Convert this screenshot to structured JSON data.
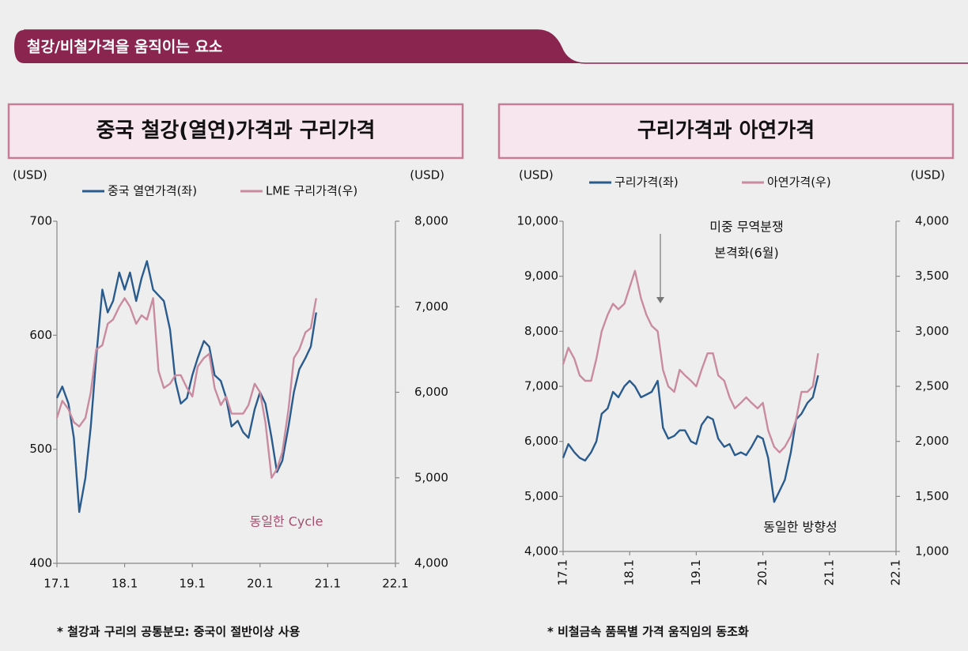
{
  "header": {
    "title": "철강/비철가격을 움직이는 요소"
  },
  "chart_data": [
    {
      "type": "line",
      "title": "중국 철강(열연)가격과 구리가격",
      "ylabel": "(USD)",
      "y2label": "(USD)",
      "x": [
        17,
        17.08,
        17.17,
        17.25,
        17.33,
        17.42,
        17.5,
        17.58,
        17.67,
        17.75,
        17.83,
        17.92,
        18,
        18.08,
        18.17,
        18.25,
        18.33,
        18.42,
        18.5,
        18.58,
        18.67,
        18.75,
        18.83,
        18.92,
        19,
        19.08,
        19.17,
        19.25,
        19.33,
        19.42,
        19.5,
        19.58,
        19.67,
        19.75,
        19.83,
        19.92,
        20,
        20.08,
        20.17,
        20.25,
        20.33,
        20.42,
        20.5,
        20.58,
        20.67,
        20.75,
        20.83
      ],
      "xlim": [
        17,
        22
      ],
      "xticks": [
        {
          "value": 17,
          "label": "17.1"
        },
        {
          "value": 18,
          "label": "18.1"
        },
        {
          "value": 19,
          "label": "19.1"
        },
        {
          "value": 20,
          "label": "20.1"
        },
        {
          "value": 21,
          "label": "21.1"
        },
        {
          "value": 22,
          "label": "22.1"
        }
      ],
      "ylim": [
        400,
        700
      ],
      "yticks": [
        400,
        500,
        600,
        700
      ],
      "y2lim": [
        4000,
        8000
      ],
      "y2ticks": [
        {
          "value": 4000,
          "label": "4,000"
        },
        {
          "value": 5000,
          "label": "5,000"
        },
        {
          "value": 6000,
          "label": "6,000"
        },
        {
          "value": 7000,
          "label": "7,000"
        },
        {
          "value": 8000,
          "label": "8,000"
        }
      ],
      "series": [
        {
          "name": "중국 열연가격(좌)",
          "color": "#2a5b8d",
          "values": [
            545,
            555,
            540,
            510,
            445,
            475,
            520,
            580,
            640,
            620,
            630,
            655,
            640,
            655,
            630,
            650,
            665,
            640,
            635,
            630,
            605,
            560,
            540,
            545,
            565,
            580,
            595,
            590,
            565,
            560,
            545,
            520,
            525,
            515,
            510,
            535,
            550,
            540,
            510,
            480,
            490,
            520,
            550,
            570,
            580,
            590,
            620
          ]
        },
        {
          "name": "LME 구리가격(우)",
          "color": "#c98ba0",
          "axis": "y2",
          "values": [
            5700,
            5900,
            5800,
            5650,
            5600,
            5700,
            6000,
            6500,
            6550,
            6800,
            6850,
            7000,
            7100,
            7000,
            6800,
            6900,
            6850,
            7100,
            6250,
            6050,
            6100,
            6200,
            6200,
            6050,
            5950,
            6300,
            6400,
            6450,
            6050,
            5850,
            5950,
            5750,
            5750,
            5750,
            5850,
            6100,
            6000,
            5650,
            5000,
            5100,
            5300,
            5800,
            6400,
            6500,
            6700,
            6750,
            7100
          ]
        }
      ],
      "annotations": [
        "동일한 Cycle"
      ],
      "note": "* 철강과 구리의 공통분모: 중국이 절반이상 사용"
    },
    {
      "type": "line",
      "title": "구리가격과 아연가격",
      "ylabel": "(USD)",
      "y2label": "(USD)",
      "x": [
        17,
        17.08,
        17.17,
        17.25,
        17.33,
        17.42,
        17.5,
        17.58,
        17.67,
        17.75,
        17.83,
        17.92,
        18,
        18.08,
        18.17,
        18.25,
        18.33,
        18.42,
        18.5,
        18.58,
        18.67,
        18.75,
        18.83,
        18.92,
        19,
        19.08,
        19.17,
        19.25,
        19.33,
        19.42,
        19.5,
        19.58,
        19.67,
        19.75,
        19.83,
        19.92,
        20,
        20.08,
        20.17,
        20.25,
        20.33,
        20.42,
        20.5,
        20.58,
        20.67,
        20.75,
        20.83
      ],
      "xlim": [
        17,
        22
      ],
      "xticks": [
        {
          "value": 17,
          "label": "17.1"
        },
        {
          "value": 18,
          "label": "18.1"
        },
        {
          "value": 19,
          "label": "19.1"
        },
        {
          "value": 20,
          "label": "20.1"
        },
        {
          "value": 21,
          "label": "21.1"
        },
        {
          "value": 22,
          "label": "22.1"
        }
      ],
      "ylim": [
        4000,
        10000
      ],
      "yticks": [
        {
          "value": 4000,
          "label": "4,000"
        },
        {
          "value": 5000,
          "label": "5,000"
        },
        {
          "value": 6000,
          "label": "6,000"
        },
        {
          "value": 7000,
          "label": "7,000"
        },
        {
          "value": 8000,
          "label": "8,000"
        },
        {
          "value": 9000,
          "label": "9,000"
        },
        {
          "value": 10000,
          "label": "10,000"
        }
      ],
      "y2lim": [
        1000,
        4000
      ],
      "y2ticks": [
        {
          "value": 1000,
          "label": "1,000"
        },
        {
          "value": 1500,
          "label": "1,500"
        },
        {
          "value": 2000,
          "label": "2,000"
        },
        {
          "value": 2500,
          "label": "2,500"
        },
        {
          "value": 3000,
          "label": "3,000"
        },
        {
          "value": 3500,
          "label": "3,500"
        },
        {
          "value": 4000,
          "label": "4,000"
        }
      ],
      "series": [
        {
          "name": "구리가격(좌)",
          "color": "#2a5b8d",
          "values": [
            5700,
            5950,
            5800,
            5700,
            5650,
            5800,
            6000,
            6500,
            6600,
            6900,
            6800,
            7000,
            7100,
            7000,
            6800,
            6850,
            6900,
            7100,
            6250,
            6050,
            6100,
            6200,
            6200,
            6000,
            5950,
            6300,
            6450,
            6400,
            6050,
            5900,
            5950,
            5750,
            5800,
            5750,
            5900,
            6100,
            6050,
            5700,
            4900,
            5100,
            5300,
            5800,
            6400,
            6500,
            6700,
            6800,
            7200
          ]
        },
        {
          "name": "아연가격(우)",
          "color": "#c98ba0",
          "axis": "y2",
          "values": [
            2700,
            2850,
            2750,
            2600,
            2550,
            2550,
            2750,
            3000,
            3150,
            3250,
            3200,
            3250,
            3400,
            3550,
            3300,
            3150,
            3050,
            3000,
            2650,
            2500,
            2450,
            2650,
            2600,
            2550,
            2500,
            2650,
            2800,
            2800,
            2600,
            2550,
            2400,
            2300,
            2350,
            2400,
            2350,
            2300,
            2350,
            2100,
            1950,
            1900,
            1950,
            2050,
            2200,
            2450,
            2450,
            2500,
            2800
          ]
        }
      ],
      "annotations": [
        "미중 무역분쟁",
        "본격화(6월)",
        "동일한 방향성"
      ],
      "note": "* 비철금속 품목별 가격 움직임의 동조화"
    }
  ]
}
